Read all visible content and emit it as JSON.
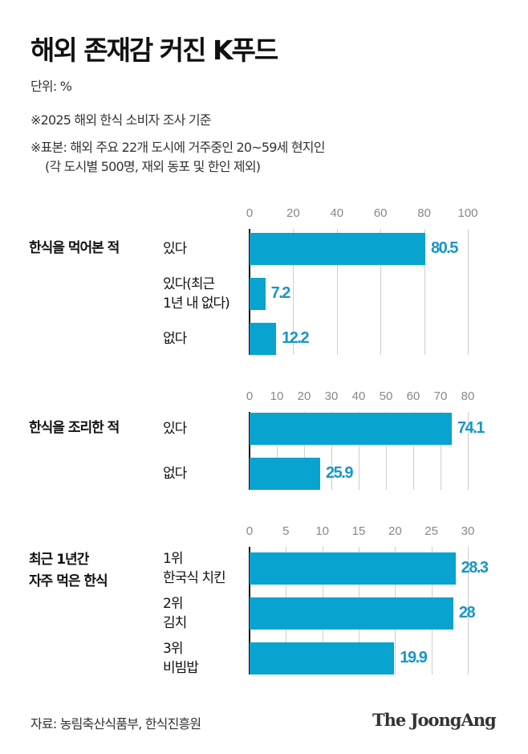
{
  "header": {
    "title": "해외 존재감 커진 K푸드",
    "unit": "단위: %",
    "note1": "※2025 해외 한식 소비자 조사 기준",
    "note2": "※표본: 해외 주요 22개 도시에 거주중인 20~59세 현지인",
    "note3": "(각 도시별 500명, 재외 동포 및 한인 제외)"
  },
  "colors": {
    "bar": "#08a3cf",
    "value_label": "#1797c4"
  },
  "chart_data": [
    {
      "type": "bar",
      "orientation": "horizontal",
      "group_label": [
        "한식을 먹어본 적"
      ],
      "categories": [
        [
          "있다"
        ],
        [
          "있다(최근",
          "1년 내 없다)"
        ],
        [
          "없다"
        ]
      ],
      "values": [
        80.5,
        7.2,
        12.2
      ],
      "value_labels": [
        "80.5",
        "7.2",
        "12.2"
      ],
      "xlim": [
        0,
        100
      ],
      "ticks": [
        "0",
        "20",
        "40",
        "60",
        "80",
        "100"
      ],
      "grid": true
    },
    {
      "type": "bar",
      "orientation": "horizontal",
      "group_label": [
        "한식을 조리한 적"
      ],
      "categories": [
        [
          "있다"
        ],
        [
          "없다"
        ]
      ],
      "values": [
        74.1,
        25.9
      ],
      "value_labels": [
        "74.1",
        "25.9"
      ],
      "xlim": [
        0,
        80
      ],
      "ticks": [
        "0",
        "10",
        "20",
        "30",
        "40",
        "50",
        "60",
        "70",
        "80"
      ],
      "grid": true
    },
    {
      "type": "bar",
      "orientation": "horizontal",
      "group_label": [
        "최근 1년간",
        "자주 먹은 한식"
      ],
      "categories": [
        [
          "1위",
          "한국식 치킨"
        ],
        [
          "2위",
          "김치"
        ],
        [
          "3위",
          "비빔밥"
        ]
      ],
      "values": [
        28.3,
        28,
        19.9
      ],
      "value_labels": [
        "28.3",
        "28",
        "19.9"
      ],
      "xlim": [
        0,
        30
      ],
      "ticks": [
        "0",
        "5",
        "10",
        "15",
        "20",
        "25",
        "30"
      ],
      "grid": true
    }
  ],
  "footer": {
    "source": "자료: 농림축산식품부, 한식진흥원",
    "logo": "The JoongAng"
  }
}
